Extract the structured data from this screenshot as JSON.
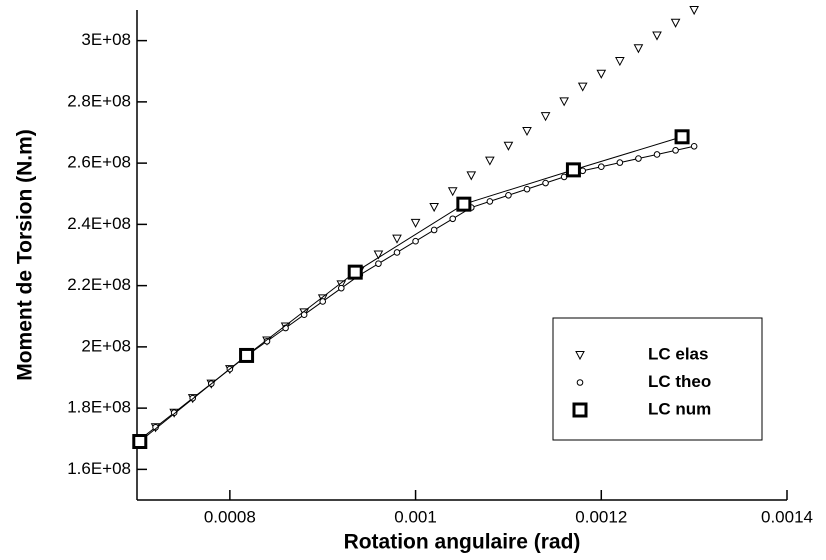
{
  "chart_data": {
    "type": "scatter",
    "xlabel": "Rotation angulaire (rad)",
    "ylabel": "Moment de Torsion (N.m)",
    "xlim": [
      0.0007,
      0.0014
    ],
    "xticks": [
      0.0008,
      0.001,
      0.0012,
      0.0014
    ],
    "ylim": [
      150000000,
      310000000
    ],
    "yticks": [
      {
        "value": 160000000,
        "label": "1.6E+08"
      },
      {
        "value": 180000000,
        "label": "1.8E+08"
      },
      {
        "value": 200000000,
        "label": "2E+08"
      },
      {
        "value": 220000000,
        "label": "2.2E+08"
      },
      {
        "value": 240000000,
        "label": "2.4E+08"
      },
      {
        "value": 260000000,
        "label": "2.6E+08"
      },
      {
        "value": 280000000,
        "label": "2.8E+08"
      },
      {
        "value": 300000000,
        "label": "3E+08"
      }
    ],
    "grid": false,
    "legend": "lower right",
    "series": [
      {
        "name": "LC elas",
        "color": "#000000",
        "marker": "triangle",
        "line": false,
        "x": [
          0.0007,
          0.00072,
          0.00074,
          0.00076,
          0.00078,
          0.0008,
          0.00082,
          0.00084,
          0.00086,
          0.00088,
          0.0009,
          0.00092,
          0.00094,
          0.00096,
          0.00098,
          0.001,
          0.00102,
          0.00104,
          0.00106,
          0.00108,
          0.0011,
          0.00112,
          0.00114,
          0.00116,
          0.00118,
          0.0012,
          0.00122,
          0.00124,
          0.00126,
          0.00128,
          0.0013
        ],
        "values": [
          169000000,
          173750000,
          178500000,
          183250000,
          188000000,
          192750000,
          197500000,
          202080000,
          206670000,
          211250000,
          215830000,
          220420000,
          225000000,
          230170000,
          235330000,
          240500000,
          245670000,
          250830000,
          256000000,
          260830000,
          265670000,
          270500000,
          275330000,
          280170000,
          285000000,
          289170000,
          293330000,
          297500000,
          301670000,
          305830000,
          310000000
        ]
      },
      {
        "name": "LC theo",
        "color": "#000000",
        "marker": "circle",
        "line": true,
        "x": [
          0.0007,
          0.00072,
          0.00074,
          0.00076,
          0.00078,
          0.0008,
          0.00082,
          0.00084,
          0.00086,
          0.00088,
          0.0009,
          0.00092,
          0.00094,
          0.00096,
          0.00098,
          0.001,
          0.00102,
          0.00104,
          0.00106,
          0.00108,
          0.0011,
          0.00112,
          0.00114,
          0.00116,
          0.00118,
          0.0012,
          0.00122,
          0.00124,
          0.00126,
          0.00128,
          0.0013
        ],
        "values": [
          169000000,
          173750000,
          178500000,
          183250000,
          188000000,
          192750000,
          197500000,
          201830000,
          206170000,
          210500000,
          214830000,
          219170000,
          223500000,
          227170000,
          230830000,
          234500000,
          238170000,
          241830000,
          245500000,
          247500000,
          249500000,
          251500000,
          253500000,
          255500000,
          257500000,
          258830000,
          260170000,
          261500000,
          262830000,
          264170000,
          265500000
        ]
      },
      {
        "name": "LC num",
        "color": "#000000",
        "marker": "square",
        "line": true,
        "x": [
          0.000703,
          0.000818,
          0.000935,
          0.001052,
          0.00117,
          0.001287
        ],
        "values": [
          169100000,
          197200000,
          224400000,
          246600000,
          257800000,
          268600000
        ]
      }
    ]
  }
}
